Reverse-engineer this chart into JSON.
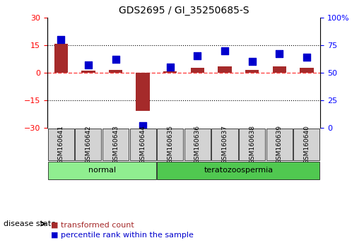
{
  "title": "GDS2695 / GI_35250685-S",
  "samples": [
    "GSM160641",
    "GSM160642",
    "GSM160643",
    "GSM160644",
    "GSM160635",
    "GSM160636",
    "GSM160637",
    "GSM160638",
    "GSM160639",
    "GSM160640"
  ],
  "transformed_count": [
    15.5,
    1.0,
    1.5,
    -21.0,
    0.5,
    2.5,
    3.5,
    1.5,
    3.5,
    2.5
  ],
  "percentile_rank": [
    80,
    57,
    62,
    2,
    55,
    65,
    70,
    60,
    67,
    64
  ],
  "ylim_left": [
    -30,
    30
  ],
  "yticks_left": [
    -30,
    -15,
    0,
    15,
    30
  ],
  "ylim_right": [
    0,
    100
  ],
  "yticks_right": [
    0,
    25,
    50,
    75,
    100
  ],
  "groups": [
    {
      "label": "normal",
      "indices": [
        0,
        1,
        2,
        3
      ],
      "color": "#90EE90"
    },
    {
      "label": "teratozoospermia",
      "indices": [
        4,
        5,
        6,
        7,
        8,
        9
      ],
      "color": "#50C850"
    }
  ],
  "bar_color": "#A52A2A",
  "dot_color": "#0000CD",
  "grid_color": "#000000",
  "zero_line_color": "#FF4444",
  "bg_color": "#FFFFFF",
  "plot_bg": "#FFFFFF",
  "sample_bg": "#D3D3D3",
  "legend_items": [
    "transformed count",
    "percentile rank within the sample"
  ],
  "disease_state_label": "disease state",
  "bar_width": 0.5,
  "dot_size": 60
}
